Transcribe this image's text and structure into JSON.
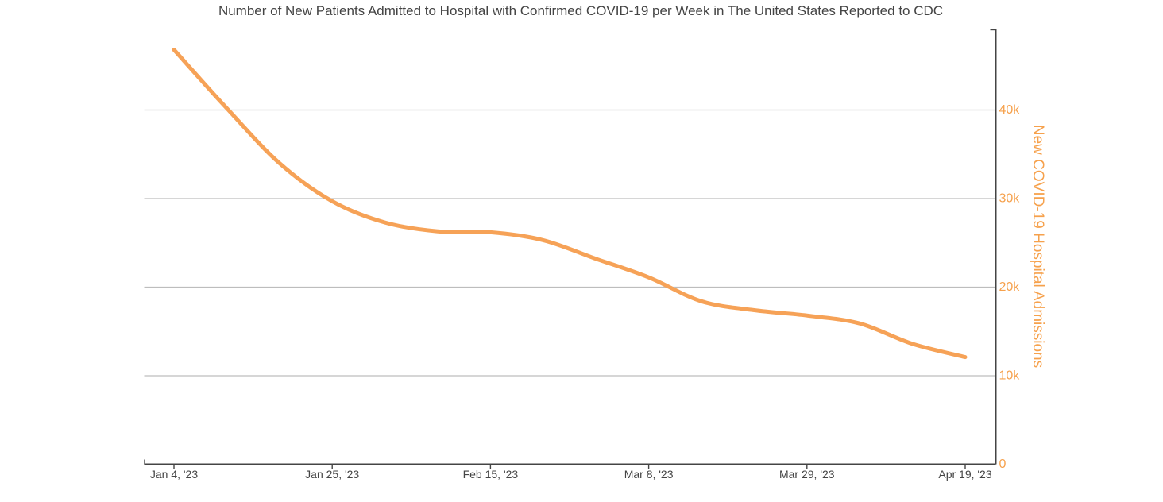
{
  "page": {
    "background": "#ffffff"
  },
  "chart": {
    "title": "Number of New Patients Admitted to Hospital with Confirmed COVID-19 per Week in The United States Reported to CDC",
    "colors": {
      "line": "#f6a257",
      "accent_text": "#f6a14c",
      "heading_text": "#444444",
      "x_tick_text": "#444444",
      "grid": "#bdbdbd",
      "axis": "#444444"
    }
  },
  "chart_data": {
    "type": "line",
    "title": "Number of New Patients Admitted to Hospital with Confirmed COVID-19 per Week in The United States Reported to CDC",
    "xlabel": "",
    "ylabel": "New COVID-19 Hospital Admissions",
    "line_shape": "spline",
    "grid": "horizontal-only",
    "legend": "none",
    "ylim": [
      0,
      49100
    ],
    "series": [
      {
        "name": "New COVID-19 Hospital Admissions",
        "x": [
          "Jan 4, '23",
          "Jan 11, '23",
          "Jan 18, '23",
          "Jan 25, '23",
          "Feb 1, '23",
          "Feb 8, '23",
          "Feb 15, '23",
          "Feb 22, '23",
          "Mar 1, '23",
          "Mar 8, '23",
          "Mar 15, '23",
          "Mar 22, '23",
          "Mar 29, '23",
          "Apr 5, '23",
          "Apr 12, '23",
          "Apr 19, '23"
        ],
        "values": [
          46800,
          40200,
          34000,
          29700,
          27300,
          26300,
          26200,
          25300,
          23200,
          21100,
          18400,
          17400,
          16800,
          15900,
          13600,
          12100
        ]
      }
    ],
    "x_axis_tick_indices": [
      0,
      3,
      6,
      9,
      12,
      15
    ],
    "x_axis_tick_labels": [
      "Jan 4, '23",
      "Jan 25, '23",
      "Feb 15, '23",
      "Mar 8, '23",
      "Mar 29, '23",
      "Apr 19, '23"
    ],
    "y_axis_ticks": [
      {
        "value": 0,
        "label": "0"
      },
      {
        "value": 10000,
        "label": "10k"
      },
      {
        "value": 20000,
        "label": "20k"
      },
      {
        "value": 30000,
        "label": "30k"
      },
      {
        "value": 40000,
        "label": "40k"
      }
    ]
  }
}
